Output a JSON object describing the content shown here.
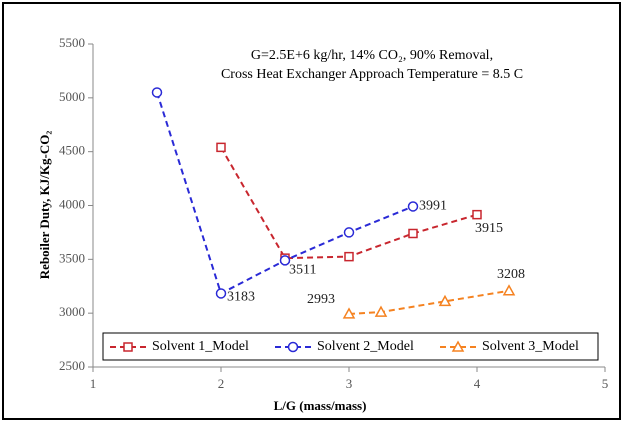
{
  "chart_data": {
    "type": "line",
    "annotations": [
      "G=2.5E+6 kg/hr,    14% CO₂,    90%  Removal,",
      "Cross Heat Exchanger Approach Temperature = 8.5 C"
    ],
    "x_label": "L/G (mass/mass)",
    "y_label": "Reboiler Duty,  KJ/Kg-CO₂",
    "xlim": [
      1,
      5
    ],
    "xticks": [
      1,
      2,
      3,
      4,
      5
    ],
    "ylim": [
      2500,
      5500
    ],
    "yticks": [
      2500,
      3000,
      3500,
      4000,
      4500,
      5000,
      5500
    ],
    "legend": "bottom",
    "series": [
      {
        "name": "Solvent 1_Model",
        "color": "#c8262e",
        "marker": "square",
        "x": [
          2,
          2.5,
          3,
          3.5,
          4
        ],
        "values": [
          4540,
          3511,
          3525,
          3740,
          3915
        ],
        "value_labels": [
          null,
          "3511",
          null,
          null,
          "3915"
        ]
      },
      {
        "name": "Solvent 2_Model",
        "color": "#2a2ad6",
        "marker": "circle",
        "x": [
          1.5,
          2,
          2.5,
          3,
          3.5
        ],
        "values": [
          5050,
          3183,
          3490,
          3750,
          3991
        ],
        "value_labels": [
          null,
          "3183",
          null,
          null,
          "3991"
        ]
      },
      {
        "name": "Solvent 3_Model",
        "color": "#f58220",
        "marker": "triangle",
        "x": [
          3,
          3.25,
          3.75,
          4.25
        ],
        "values": [
          2993,
          3010,
          3110,
          3208
        ],
        "value_labels": [
          "2993",
          null,
          null,
          "3208"
        ]
      }
    ]
  }
}
